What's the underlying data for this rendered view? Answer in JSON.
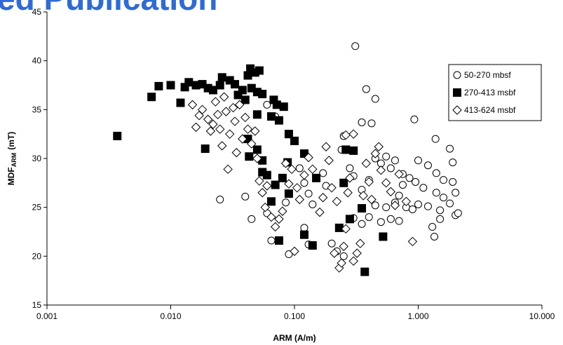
{
  "watermark": "ed Publication",
  "chart_data": {
    "type": "scatter",
    "x_label": "ARM (A/m)",
    "y_label": "MDF",
    "y_label_sub": "ARM",
    "y_label_unit": "(mT)",
    "xscale": "log",
    "xlim": [
      0.001,
      10
    ],
    "xticks": [
      {
        "value": 0.001,
        "label": "0.001"
      },
      {
        "value": 0.01,
        "label": "0.010"
      },
      {
        "value": 0.1,
        "label": "0.100"
      },
      {
        "value": 1,
        "label": "1.000"
      },
      {
        "value": 10,
        "label": "10.000"
      }
    ],
    "ylim": [
      15,
      45
    ],
    "yticks": [
      15,
      20,
      25,
      30,
      35,
      40,
      45
    ],
    "legend": "upper right",
    "series": [
      {
        "name": "50-270 mbsf",
        "marker": "circle",
        "color": "#000000",
        "x": [
          0.31,
          0.38,
          0.45,
          0.42,
          0.35,
          0.93,
          1.38,
          1.8,
          1.9,
          0.025,
          0.06,
          0.07,
          0.09,
          0.11,
          0.12,
          0.13,
          0.14,
          0.12,
          0.13,
          0.09,
          0.065,
          0.06,
          0.045,
          0.04,
          0.085,
          0.22,
          0.25,
          0.2,
          0.3,
          0.35,
          0.4,
          0.5,
          0.6,
          0.7,
          0.45,
          0.55,
          0.65,
          0.8,
          0.9,
          1.0,
          1.2,
          1.5,
          2.0,
          2.1,
          1.8,
          1.6,
          1.4,
          1.1,
          0.95,
          0.85,
          0.75,
          0.6,
          0.5,
          0.45,
          0.55,
          0.65,
          1.0,
          1.2,
          1.4,
          1.6,
          1.9,
          2.0,
          1.3,
          1.35,
          1.5,
          0.75,
          0.7,
          0.4,
          0.35,
          0.3,
          0.28,
          0.24,
          0.25,
          0.17,
          0.18
        ],
        "values": [
          41.5,
          37.1,
          36.1,
          33.6,
          33.7,
          34.0,
          32.0,
          31.0,
          29.6,
          25.8,
          35.5,
          34.3,
          32.5,
          29.0,
          27.5,
          26.4,
          25.3,
          22.9,
          21.2,
          20.2,
          21.6,
          24.4,
          23.8,
          26.1,
          25.5,
          20.5,
          20.0,
          21.3,
          23.9,
          23.3,
          24.0,
          23.5,
          23.8,
          23.6,
          25.2,
          25.0,
          25.5,
          25.0,
          24.8,
          25.3,
          25.1,
          24.7,
          24.2,
          24.4,
          25.4,
          26.0,
          26.5,
          27.0,
          27.6,
          28.0,
          28.4,
          29.0,
          29.5,
          30.0,
          30.2,
          29.8,
          29.8,
          29.3,
          28.5,
          27.8,
          27.6,
          26.5,
          23.0,
          22.0,
          23.8,
          27.3,
          26.2,
          27.8,
          26.8,
          28.2,
          29.0,
          30.9,
          32.3,
          28.5,
          27.2
        ]
      },
      {
        "name": "270-413 msbf",
        "marker": "square",
        "color": "#000000",
        "x": [
          0.0037,
          0.007,
          0.008,
          0.01,
          0.012,
          0.013,
          0.014,
          0.016,
          0.018,
          0.02,
          0.019,
          0.022,
          0.025,
          0.026,
          0.03,
          0.033,
          0.035,
          0.038,
          0.042,
          0.044,
          0.048,
          0.052,
          0.045,
          0.05,
          0.055,
          0.04,
          0.068,
          0.072,
          0.082,
          0.065,
          0.05,
          0.075,
          0.042,
          0.05,
          0.055,
          0.043,
          0.055,
          0.06,
          0.065,
          0.07,
          0.08,
          0.09,
          0.088,
          0.09,
          0.1,
          0.12,
          0.15,
          0.075,
          0.12,
          0.14,
          0.23,
          0.26,
          0.3,
          0.28,
          0.35,
          0.37,
          0.52,
          0.25
        ],
        "values": [
          32.3,
          36.3,
          37.4,
          37.5,
          35.7,
          37.3,
          37.8,
          37.5,
          37.6,
          37.2,
          31.0,
          37.0,
          37.5,
          38.3,
          38.0,
          37.6,
          36.5,
          37.0,
          38.5,
          39.2,
          38.8,
          39.0,
          37.2,
          36.8,
          36.6,
          36.0,
          36.0,
          35.5,
          35.3,
          34.3,
          34.5,
          33.9,
          32.0,
          30.9,
          29.8,
          30.2,
          28.6,
          28.3,
          25.6,
          27.3,
          28.0,
          26.4,
          29.6,
          32.5,
          31.8,
          30.5,
          28.0,
          21.6,
          22.2,
          21.1,
          22.9,
          30.9,
          30.8,
          23.8,
          24.9,
          18.4,
          22.0,
          27.5
        ]
      },
      {
        "name": "413-624 msbf",
        "marker": "diamond",
        "color": "#000000",
        "x": [
          0.015,
          0.016,
          0.017,
          0.018,
          0.02,
          0.021,
          0.022,
          0.023,
          0.024,
          0.025,
          0.026,
          0.027,
          0.028,
          0.029,
          0.03,
          0.032,
          0.033,
          0.034,
          0.036,
          0.038,
          0.04,
          0.042,
          0.045,
          0.048,
          0.05,
          0.052,
          0.055,
          0.058,
          0.06,
          0.065,
          0.07,
          0.075,
          0.08,
          0.085,
          0.09,
          0.095,
          0.1,
          0.105,
          0.11,
          0.12,
          0.13,
          0.14,
          0.16,
          0.17,
          0.18,
          0.19,
          0.2,
          0.21,
          0.22,
          0.23,
          0.24,
          0.25,
          0.26,
          0.27,
          0.28,
          0.3,
          0.32,
          0.34,
          0.36,
          0.38,
          0.4,
          0.42,
          0.45,
          0.48,
          0.5,
          0.55,
          0.6,
          0.65,
          0.7,
          0.8,
          0.9,
          0.3,
          0.26
        ],
        "values": [
          35.5,
          33.2,
          34.4,
          35.0,
          34.0,
          32.8,
          33.5,
          35.8,
          34.5,
          33.0,
          31.3,
          36.3,
          34.8,
          28.9,
          32.5,
          35.2,
          33.8,
          30.6,
          35.5,
          32.0,
          34.2,
          33.0,
          31.5,
          32.8,
          30.0,
          27.7,
          26.5,
          25.0,
          27.2,
          24.0,
          23.0,
          23.8,
          24.6,
          29.5,
          27.4,
          28.9,
          20.5,
          27.0,
          25.8,
          28.3,
          30.1,
          28.9,
          24.5,
          26.0,
          31.2,
          29.8,
          27.0,
          20.3,
          25.6,
          18.8,
          19.3,
          21.0,
          22.8,
          26.5,
          28.0,
          19.5,
          20.3,
          21.3,
          26.2,
          29.5,
          27.6,
          25.8,
          30.5,
          31.2,
          28.8,
          27.5,
          26.6,
          25.2,
          28.4,
          25.6,
          21.5,
          32.5,
          32.4
        ]
      }
    ]
  }
}
